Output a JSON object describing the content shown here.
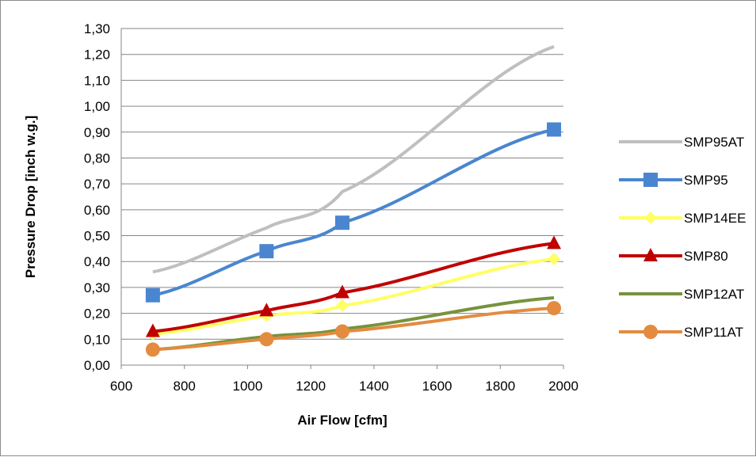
{
  "chart_data": {
    "type": "line",
    "title": "",
    "xlabel": "Air Flow [cfm]",
    "ylabel": "Pressure Drop [inch w.g.]",
    "xlim": [
      600,
      2000
    ],
    "ylim": [
      0,
      1.3
    ],
    "x_ticks": [
      "600",
      "800",
      "1000",
      "1200",
      "1400",
      "1600",
      "1800",
      "2000"
    ],
    "y_ticks": [
      "0,00",
      "0,10",
      "0,20",
      "0,30",
      "0,40",
      "0,50",
      "0,60",
      "0,70",
      "0,80",
      "0,90",
      "1,00",
      "1,10",
      "1,20",
      "1,30"
    ],
    "grid": "horizontal",
    "legend_position": "right",
    "x": [
      700,
      1060,
      1300,
      1970
    ],
    "series": [
      {
        "name": "SMP95AT",
        "color": "#bfbfbf",
        "marker": "none",
        "values": [
          0.36,
          0.53,
          0.67,
          1.23
        ]
      },
      {
        "name": "SMP95",
        "color": "#4a86cf",
        "marker": "square",
        "values": [
          0.27,
          0.44,
          0.55,
          0.91
        ]
      },
      {
        "name": "SMP14EE",
        "color": "#ffff66",
        "marker": "diamond",
        "values": [
          0.12,
          0.19,
          0.23,
          0.41
        ]
      },
      {
        "name": "SMP80",
        "color": "#c00000",
        "marker": "triangle",
        "values": [
          0.13,
          0.21,
          0.28,
          0.47
        ]
      },
      {
        "name": "SMP12AT",
        "color": "#77933c",
        "marker": "none",
        "values": [
          0.06,
          0.11,
          0.14,
          0.26
        ]
      },
      {
        "name": "SMP11AT",
        "color": "#e38b3f",
        "marker": "circle",
        "values": [
          0.06,
          0.1,
          0.13,
          0.22
        ]
      }
    ]
  }
}
